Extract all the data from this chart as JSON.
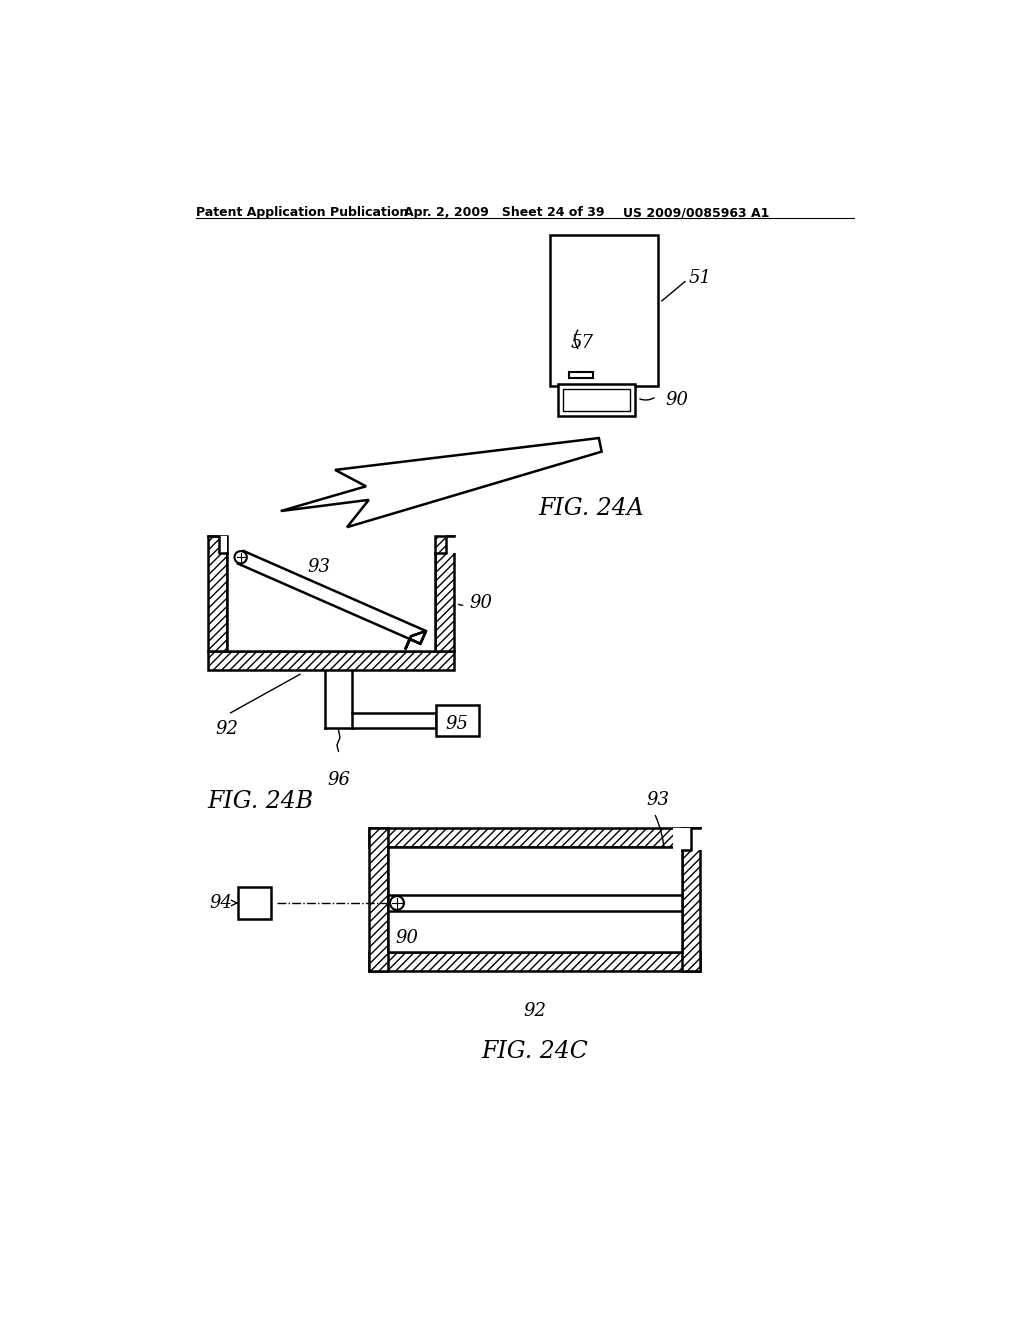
{
  "bg_color": "#ffffff",
  "header_left": "Patent Application Publication",
  "header_mid": "Apr. 2, 2009   Sheet 24 of 39",
  "header_right": "US 2009/0085963 A1",
  "fig24a_label": "FIG. 24A",
  "fig24b_label": "FIG. 24B",
  "fig24c_label": "FIG. 24C",
  "label_51": "51",
  "label_57": "57",
  "label_90": "90",
  "label_92": "92",
  "label_93": "93",
  "label_95": "95",
  "label_96": "96",
  "label_94": "94"
}
